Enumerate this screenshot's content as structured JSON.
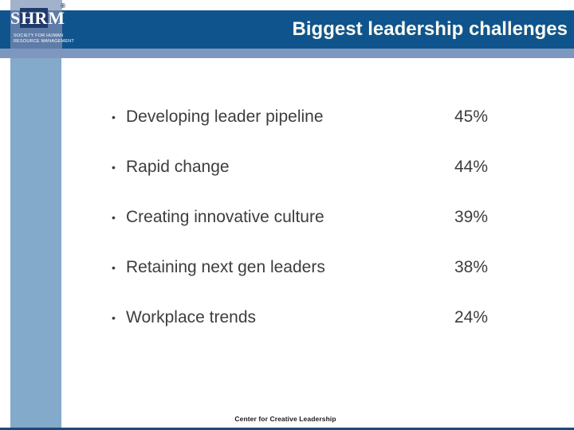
{
  "slide": {
    "title": "Biggest leadership challenges",
    "footer": "Center for Creative Leadership"
  },
  "logo": {
    "letter_s": "S",
    "letters_hr": "HR",
    "letter_m": "M",
    "registered_mark": "®",
    "tagline_line1": "SOCIETY FOR HUMAN",
    "tagline_line2": "RESOURCE MANAGEMENT"
  },
  "list": {
    "bullet": "•",
    "items": [
      {
        "label": "Developing leader pipeline",
        "value": "45%"
      },
      {
        "label": "Rapid change",
        "value": "44%"
      },
      {
        "label": "Creating innovative culture",
        "value": "39%"
      },
      {
        "label": "Retaining next gen leaders",
        "value": "38%"
      },
      {
        "label": "Workplace trends",
        "value": "24%"
      }
    ]
  },
  "colors": {
    "header_navy": "#10548D",
    "accent_strip": "#7E97BF",
    "sidebar_blue": "#83A9CB",
    "logo_blue": "#5E7CA7",
    "logo_top_band": "#A2B2CB",
    "logo_hr_box": "#203A6C",
    "title_text": "#FBFBF1",
    "body_text": "#3D3D3D",
    "bottom_border": "#1E4976"
  }
}
